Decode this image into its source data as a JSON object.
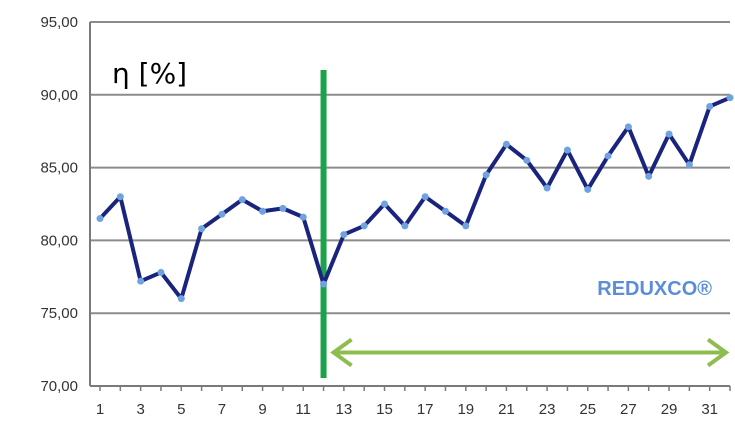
{
  "chart_data": {
    "type": "line",
    "title": "",
    "xlabel": "",
    "ylabel": "η [%]",
    "ylim": [
      70,
      95
    ],
    "y_ticks": [
      "70,00",
      "75,00",
      "80,00",
      "85,00",
      "90,00",
      "95,00"
    ],
    "x_ticks": [
      "1",
      "3",
      "5",
      "7",
      "9",
      "11",
      "13",
      "15",
      "17",
      "19",
      "21",
      "23",
      "25",
      "27",
      "29",
      "31"
    ],
    "grid": true,
    "x": [
      1,
      2,
      3,
      4,
      5,
      6,
      7,
      8,
      9,
      10,
      11,
      12,
      13,
      14,
      15,
      16,
      17,
      18,
      19,
      20,
      21,
      22,
      23,
      24,
      25,
      26,
      27,
      28,
      29,
      30,
      31,
      32
    ],
    "series": [
      {
        "color": "#1a237e",
        "marker_color": "#6fa3e0",
        "values": [
          81.5,
          83.0,
          77.2,
          77.8,
          76.0,
          80.8,
          81.8,
          82.8,
          82.0,
          82.2,
          81.6,
          77.0,
          80.4,
          81.0,
          82.5,
          81.0,
          83.0,
          82.0,
          81.0,
          84.5,
          86.6,
          85.5,
          83.6,
          86.2,
          83.5,
          85.8,
          87.8,
          84.4,
          87.3,
          85.2,
          89.2,
          89.8
        ]
      }
    ],
    "annotations": {
      "vertical_line_x": 12,
      "vertical_line_color": "#1aa34a",
      "arrow_from_x": 12,
      "arrow_to_x": 32,
      "arrow_y": 72.3,
      "arrow_color": "#8fbc4f",
      "label": "REDUXCO®"
    }
  }
}
